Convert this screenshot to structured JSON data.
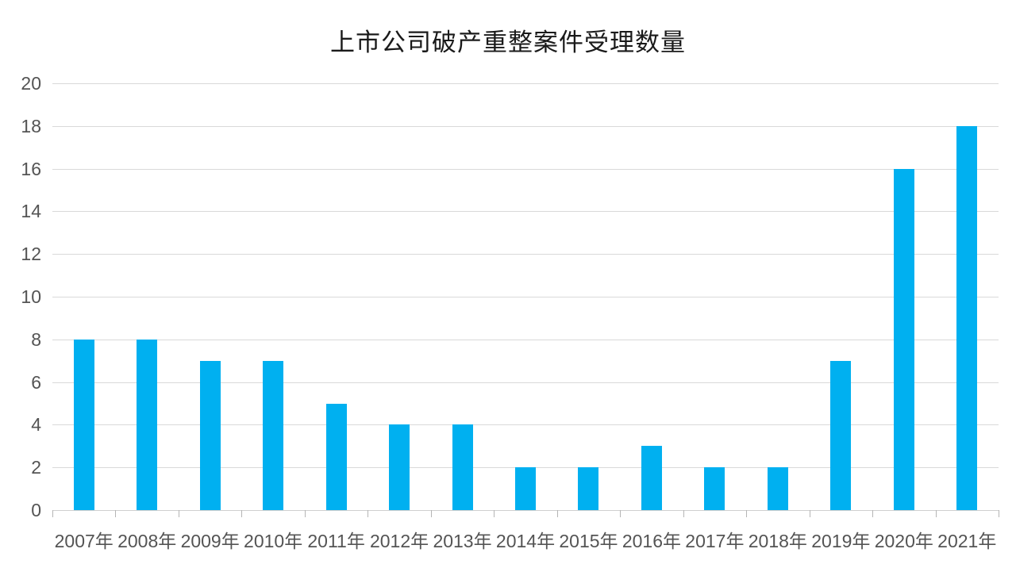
{
  "chart_data": {
    "type": "bar",
    "title": "上市公司破产重整案件受理数量",
    "categories": [
      "2007年",
      "2008年",
      "2009年",
      "2010年",
      "2011年",
      "2012年",
      "2013年",
      "2014年",
      "2015年",
      "2016年",
      "2017年",
      "2018年",
      "2019年",
      "2020年",
      "2021年"
    ],
    "values": [
      8,
      8,
      7,
      7,
      5,
      4,
      4,
      2,
      2,
      3,
      2,
      2,
      7,
      16,
      18
    ],
    "xlabel": "",
    "ylabel": "",
    "ylim": [
      0,
      20
    ],
    "ytick_step": 2,
    "yticks": [
      0,
      2,
      4,
      6,
      8,
      10,
      12,
      14,
      16,
      18,
      20
    ],
    "grid": true,
    "legend": "none",
    "colors": {
      "bar": "#00b0f0",
      "gridline": "#d9d9d9",
      "axis_line": "#cfcfcf",
      "tick_mark": "#b5b5b5",
      "tick_label": "#545454",
      "title": "#1a1a1a",
      "background": "#ffffff"
    }
  }
}
